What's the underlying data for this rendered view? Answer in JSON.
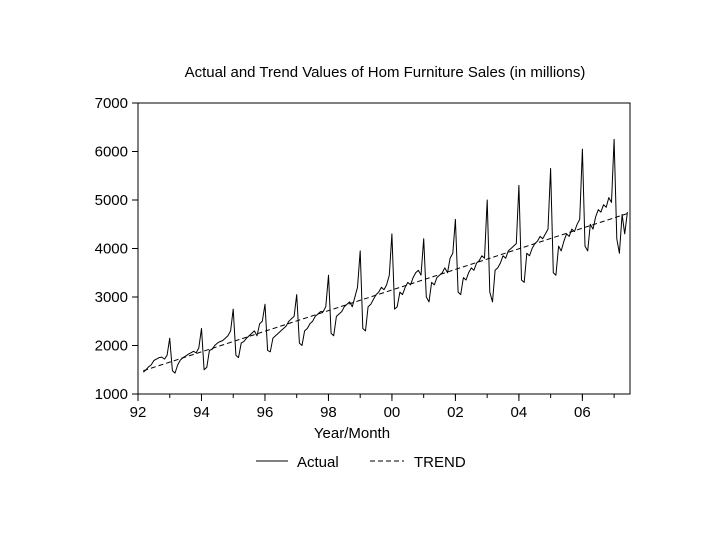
{
  "chart_data": {
    "type": "line",
    "title": "Actual and Trend Values of Hom Furniture Sales (in millions)",
    "xlabel": "Year/Month",
    "ylabel": "",
    "x_start": "1992-03",
    "x_end": "2007-06",
    "xlim": [
      "1992-01",
      "2007-07"
    ],
    "ylim": [
      1000,
      7000
    ],
    "y_ticks": [
      "1000",
      "2000",
      "3000",
      "4000",
      "5000",
      "6000",
      "7000"
    ],
    "x_ticks": [
      {
        "label": "92",
        "date": "1992-01"
      },
      {
        "label": "94",
        "date": "1994-01"
      },
      {
        "label": "96",
        "date": "1996-01"
      },
      {
        "label": "98",
        "date": "1998-01"
      },
      {
        "label": "00",
        "date": "2000-01"
      },
      {
        "label": "02",
        "date": "2002-01"
      },
      {
        "label": "04",
        "date": "2004-01"
      },
      {
        "label": "06",
        "date": "2006-01"
      }
    ],
    "grid": false,
    "legend_position": "bottom",
    "series": [
      {
        "name": "Actual",
        "style": "solid",
        "values": [
          1450,
          1500,
          1560,
          1600,
          1690,
          1720,
          1750,
          1760,
          1720,
          1800,
          2150,
          1480,
          1430,
          1600,
          1700,
          1750,
          1780,
          1820,
          1850,
          1880,
          1850,
          1950,
          2350,
          1500,
          1550,
          1900,
          1920,
          2000,
          2050,
          2080,
          2100,
          2150,
          2200,
          2300,
          2750,
          1800,
          1750,
          2050,
          2080,
          2150,
          2200,
          2250,
          2300,
          2200,
          2450,
          2500,
          2850,
          1900,
          1870,
          2150,
          2200,
          2250,
          2300,
          2350,
          2400,
          2500,
          2550,
          2600,
          3050,
          2050,
          2000,
          2300,
          2350,
          2450,
          2500,
          2600,
          2650,
          2700,
          2700,
          2800,
          3450,
          2250,
          2200,
          2600,
          2650,
          2700,
          2800,
          2850,
          2900,
          2800,
          3000,
          3200,
          3950,
          2350,
          2300,
          2800,
          2850,
          2950,
          3050,
          3100,
          3200,
          3150,
          3250,
          3450,
          4300,
          2750,
          2800,
          3100,
          3050,
          3200,
          3300,
          3250,
          3400,
          3500,
          3550,
          3450,
          4200,
          3000,
          2900,
          3300,
          3250,
          3400,
          3450,
          3500,
          3600,
          3500,
          3800,
          3900,
          4600,
          3100,
          3050,
          3400,
          3350,
          3500,
          3600,
          3550,
          3700,
          3750,
          3850,
          3800,
          5000,
          3100,
          2900,
          3550,
          3600,
          3700,
          3850,
          3800,
          3950,
          4000,
          4050,
          4100,
          5300,
          3350,
          3300,
          3900,
          3850,
          4000,
          4100,
          4150,
          4250,
          4200,
          4300,
          4400,
          5650,
          3500,
          3450,
          4050,
          3950,
          4150,
          4300,
          4250,
          4400,
          4350,
          4500,
          4600,
          6050,
          4050,
          3950,
          4500,
          4400,
          4650,
          4800,
          4750,
          4900,
          4850,
          5050,
          4950,
          6250,
          4200,
          3900,
          4700,
          4300,
          4750
        ]
      },
      {
        "name": "TREND",
        "style": "dashed",
        "start_value": 1480,
        "end_value": 4720
      }
    ]
  }
}
